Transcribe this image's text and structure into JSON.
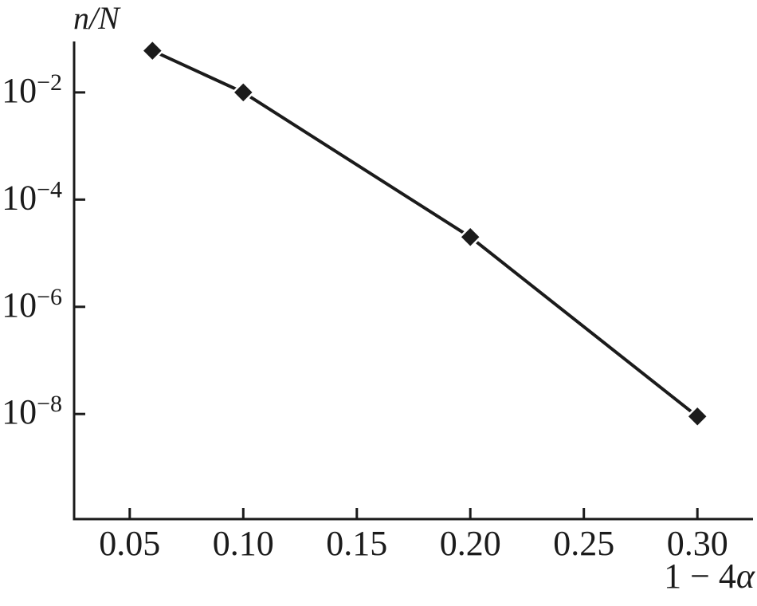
{
  "chart_data": {
    "type": "line",
    "title": "",
    "ylabel": "n/N",
    "xlabel": "1 − 4α",
    "xlabel_prefix": "1 − 4",
    "xlabel_alpha": "α",
    "y_scale": "log",
    "grid": false,
    "legend": false,
    "xlim": [
      0.0255,
      0.3245
    ],
    "ylog_range": [
      -9.96,
      -1.05
    ],
    "x_ticks": [
      {
        "value": 0.05,
        "label": "0.05"
      },
      {
        "value": 0.1,
        "label": "0.10"
      },
      {
        "value": 0.15,
        "label": "0.15"
      },
      {
        "value": 0.2,
        "label": "0.20"
      },
      {
        "value": 0.25,
        "label": "0.25"
      },
      {
        "value": 0.3,
        "label": "0.30"
      }
    ],
    "y_ticks": [
      {
        "exp": -2,
        "base": "10",
        "exp_label": "−2"
      },
      {
        "exp": -4,
        "base": "10",
        "exp_label": "−4"
      },
      {
        "exp": -6,
        "base": "10",
        "exp_label": "−6"
      },
      {
        "exp": -8,
        "base": "10",
        "exp_label": "−8"
      }
    ],
    "series": [
      {
        "name": "n/N",
        "marker": "diamond",
        "points": [
          {
            "x": 0.06,
            "y": 0.06
          },
          {
            "x": 0.1,
            "y": 0.01
          },
          {
            "x": 0.2,
            "y": 2e-05
          },
          {
            "x": 0.3,
            "y": 9e-09
          }
        ]
      }
    ],
    "colors": {
      "axis": "#1b1b1b",
      "line": "#1b1b1b",
      "marker": "#1b1b1b",
      "text": "#1b1b1b",
      "background": "#ffffff"
    }
  }
}
